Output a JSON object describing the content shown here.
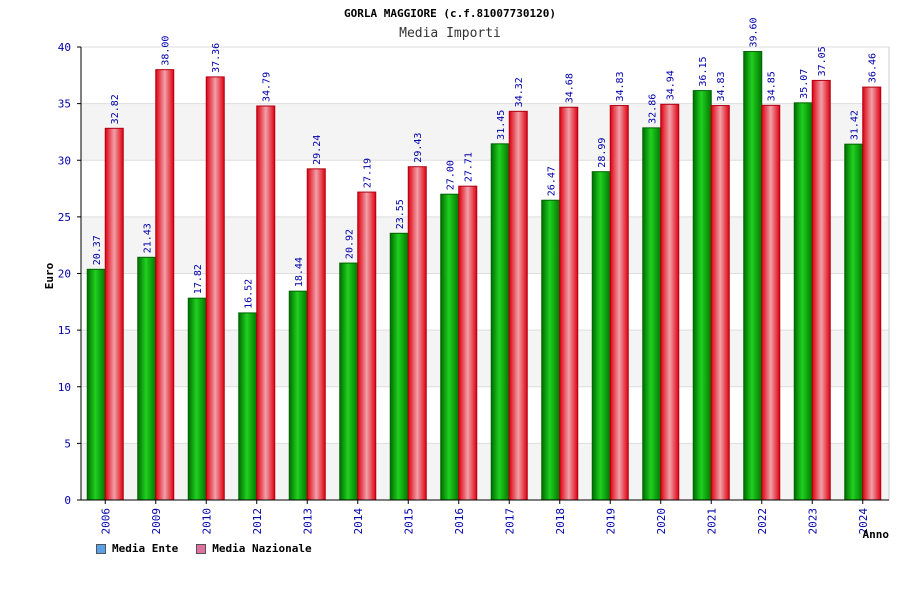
{
  "chart_data": {
    "type": "bar",
    "title": "GORLA MAGGIORE (c.f.81007730120)",
    "subtitle": "Media Importi",
    "xlabel": "Anno",
    "ylabel": "Euro",
    "ylim": [
      0,
      40
    ],
    "yticks": [
      "0",
      "5",
      "10",
      "15",
      "20",
      "25",
      "30",
      "35",
      "40"
    ],
    "grid": true,
    "legend_position": "bottom-left",
    "categories": [
      "2006",
      "2009",
      "2010",
      "2012",
      "2013",
      "2014",
      "2015",
      "2016",
      "2017",
      "2018",
      "2019",
      "2020",
      "2021",
      "2022",
      "2023",
      "2024"
    ],
    "series": [
      {
        "name": "Media Ente",
        "color": "#00a000",
        "values": [
          20.37,
          21.43,
          17.82,
          16.52,
          18.44,
          20.92,
          23.55,
          27.0,
          31.45,
          26.47,
          28.99,
          32.86,
          36.15,
          39.6,
          35.07,
          31.42
        ],
        "labels": [
          "20.37",
          "21.43",
          "17.82",
          "16.52",
          "18.44",
          "20.92",
          "23.55",
          "27.00",
          "31.45",
          "26.47",
          "28.99",
          "32.86",
          "36.15",
          "39.60",
          "35.07",
          "31.42"
        ]
      },
      {
        "name": "Media Nazionale",
        "color": "#e01020",
        "values": [
          32.82,
          38.0,
          37.36,
          34.79,
          29.24,
          27.19,
          29.43,
          27.71,
          34.32,
          34.68,
          34.83,
          34.94,
          34.83,
          34.85,
          37.05,
          36.46
        ],
        "labels": [
          "32.82",
          "38.00",
          "37.36",
          "34.79",
          "29.24",
          "27.19",
          "29.43",
          "27.71",
          "34.32",
          "34.68",
          "34.83",
          "34.94",
          "34.83",
          "34.85",
          "37.05",
          "36.46"
        ]
      }
    ],
    "legend": [
      {
        "label": "Media Ente",
        "color": "#5aa0e8"
      },
      {
        "label": "Media Nazionale",
        "color": "#e070a0"
      }
    ]
  }
}
